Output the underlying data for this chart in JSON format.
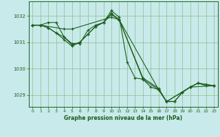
{
  "background_color": "#c8eaea",
  "grid_color": "#8cbc8c",
  "line_color": "#1a5c1a",
  "title": "Graphe pression niveau de la mer (hPa)",
  "xlim": [
    -0.5,
    23.5
  ],
  "ylim": [
    1028.55,
    1032.55
  ],
  "yticks": [
    1029,
    1030,
    1031,
    1032
  ],
  "xticks": [
    0,
    1,
    2,
    3,
    4,
    5,
    6,
    7,
    8,
    9,
    10,
    11,
    12,
    13,
    14,
    15,
    16,
    17,
    18,
    19,
    20,
    21,
    22,
    23
  ],
  "series": [
    {
      "x": [
        0,
        1,
        4,
        5,
        10,
        11,
        14,
        16,
        17,
        18,
        19,
        20,
        21,
        22,
        23
      ],
      "y": [
        1031.65,
        1031.65,
        1031.5,
        1031.5,
        1031.95,
        1031.85,
        1029.65,
        1029.25,
        1028.75,
        1028.75,
        1029.1,
        1029.3,
        1029.45,
        1029.4,
        1029.35
      ]
    },
    {
      "x": [
        0,
        1,
        2,
        3,
        4,
        5,
        6,
        7,
        8,
        9,
        10,
        11,
        12,
        13,
        14,
        15,
        16,
        17,
        18,
        19,
        20,
        21,
        22,
        23
      ],
      "y": [
        1031.65,
        1031.65,
        1031.75,
        1031.75,
        1031.2,
        1030.95,
        1030.95,
        1031.45,
        1031.65,
        1031.75,
        1032.2,
        1031.95,
        1030.25,
        1029.65,
        1029.6,
        1029.3,
        1029.2,
        1028.75,
        1028.75,
        1029.1,
        1029.3,
        1029.45,
        1029.35,
        1029.35
      ]
    },
    {
      "x": [
        0,
        1,
        2,
        3,
        4,
        5,
        6,
        7,
        8,
        9,
        10,
        11,
        14,
        16,
        17,
        20,
        21,
        23
      ],
      "y": [
        1031.65,
        1031.65,
        1031.55,
        1031.35,
        1031.2,
        1030.9,
        1031.0,
        1031.3,
        1031.6,
        1031.75,
        1032.1,
        1031.85,
        1029.6,
        1029.2,
        1028.75,
        1029.3,
        1029.45,
        1029.35
      ]
    },
    {
      "x": [
        0,
        1,
        2,
        3,
        4,
        5,
        6,
        7,
        8,
        9,
        10,
        11,
        16,
        17,
        20,
        23
      ],
      "y": [
        1031.65,
        1031.65,
        1031.55,
        1031.35,
        1031.1,
        1030.85,
        1031.0,
        1031.3,
        1031.6,
        1031.75,
        1032.05,
        1031.85,
        1029.2,
        1028.75,
        1029.3,
        1029.35
      ]
    }
  ]
}
